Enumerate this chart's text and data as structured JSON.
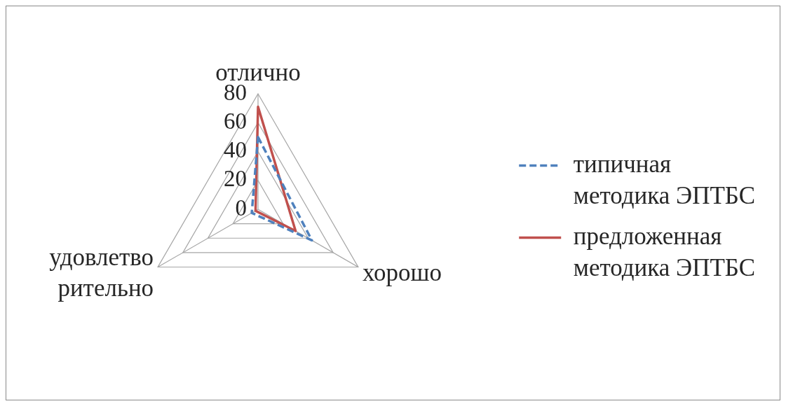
{
  "chart_data": {
    "type": "radar",
    "categories": [
      "отлично",
      "хорошо",
      "удовлетво\nрительно"
    ],
    "series": [
      {
        "name": "типичная\nметодика ЭПТБС",
        "color": "#4f81bd",
        "values": [
          50,
          43,
          5
        ],
        "line_style": "dashed"
      },
      {
        "name": "предложенная\nметодика ЭПТБС",
        "color": "#c0504d",
        "values": [
          71,
          30,
          2
        ],
        "line_style": "solid"
      }
    ],
    "ylim": [
      0,
      80
    ],
    "yticks": [
      0,
      20,
      40,
      60,
      80
    ],
    "grid": true,
    "legend": "right",
    "marker": "none"
  }
}
